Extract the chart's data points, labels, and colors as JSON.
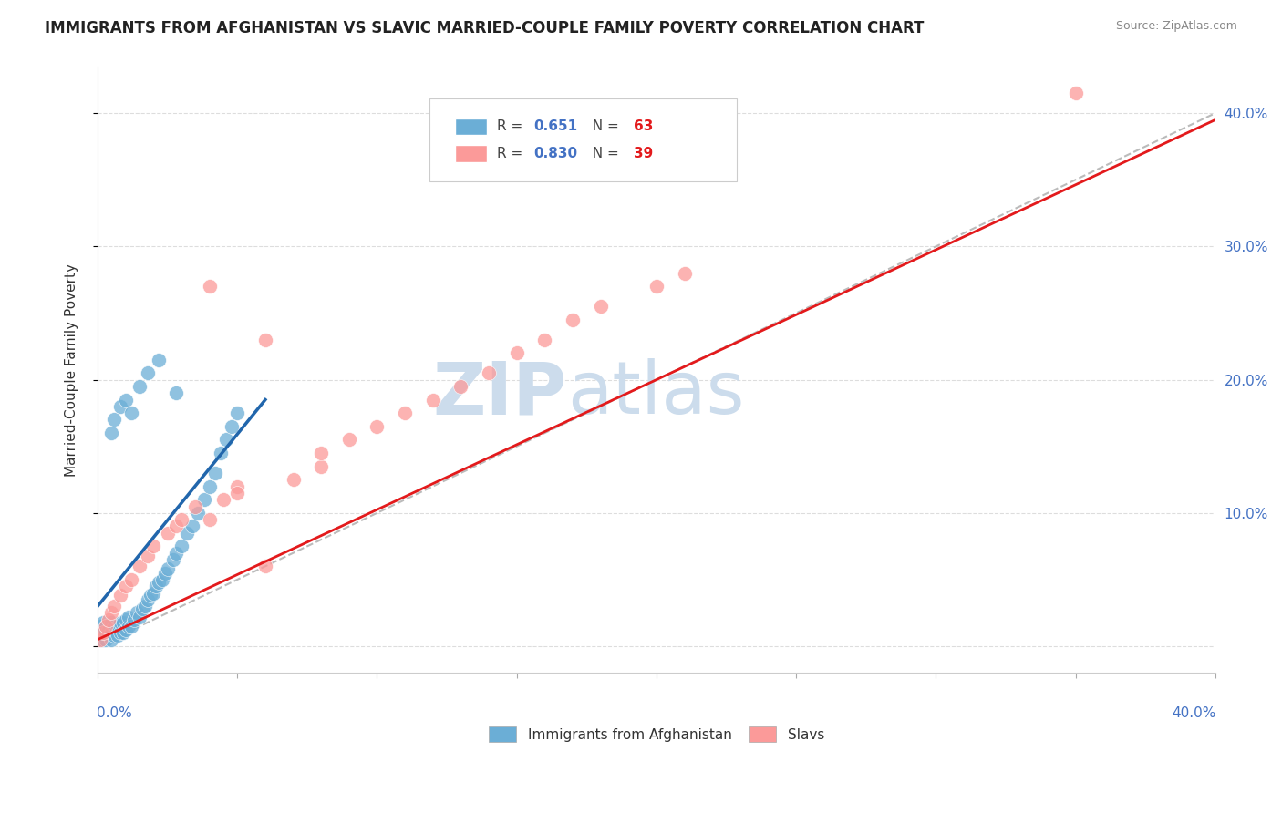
{
  "title": "IMMIGRANTS FROM AFGHANISTAN VS SLAVIC MARRIED-COUPLE FAMILY POVERTY CORRELATION CHART",
  "source": "Source: ZipAtlas.com",
  "ylabel": "Married-Couple Family Poverty",
  "xlim": [
    0.0,
    0.4
  ],
  "ylim": [
    -0.02,
    0.435
  ],
  "legend_r1": "0.651",
  "legend_n1": "63",
  "legend_r2": "0.830",
  "legend_n2": "39",
  "series1_color": "#6baed6",
  "series2_color": "#fb9a99",
  "trendline1_color": "#2166ac",
  "trendline2_color": "#e31a1c",
  "refline_color": "#bbbbbb",
  "background_color": "#ffffff",
  "watermark_zip": "ZIP",
  "watermark_atlas": "atlas",
  "watermark_color": "#ccdcec",
  "series1_name": "Immigrants from Afghanistan",
  "series2_name": "Slavs",
  "blue_x": [
    0.001,
    0.001,
    0.001,
    0.002,
    0.002,
    0.002,
    0.002,
    0.003,
    0.003,
    0.003,
    0.004,
    0.004,
    0.005,
    0.005,
    0.005,
    0.006,
    0.006,
    0.007,
    0.007,
    0.008,
    0.008,
    0.009,
    0.009,
    0.01,
    0.01,
    0.011,
    0.011,
    0.012,
    0.013,
    0.014,
    0.015,
    0.016,
    0.017,
    0.018,
    0.019,
    0.02,
    0.021,
    0.022,
    0.023,
    0.024,
    0.025,
    0.027,
    0.028,
    0.03,
    0.032,
    0.034,
    0.036,
    0.038,
    0.04,
    0.042,
    0.044,
    0.046,
    0.048,
    0.05,
    0.005,
    0.006,
    0.008,
    0.01,
    0.012,
    0.015,
    0.018,
    0.022,
    0.028
  ],
  "blue_y": [
    0.005,
    0.01,
    0.015,
    0.005,
    0.008,
    0.012,
    0.018,
    0.005,
    0.01,
    0.015,
    0.008,
    0.012,
    0.005,
    0.01,
    0.018,
    0.008,
    0.015,
    0.008,
    0.015,
    0.01,
    0.018,
    0.01,
    0.018,
    0.012,
    0.02,
    0.015,
    0.022,
    0.015,
    0.02,
    0.025,
    0.022,
    0.028,
    0.03,
    0.035,
    0.038,
    0.04,
    0.045,
    0.048,
    0.05,
    0.055,
    0.058,
    0.065,
    0.07,
    0.075,
    0.085,
    0.09,
    0.1,
    0.11,
    0.12,
    0.13,
    0.145,
    0.155,
    0.165,
    0.175,
    0.16,
    0.17,
    0.18,
    0.185,
    0.175,
    0.195,
    0.205,
    0.215,
    0.19
  ],
  "pink_x": [
    0.001,
    0.002,
    0.003,
    0.004,
    0.005,
    0.006,
    0.008,
    0.01,
    0.012,
    0.015,
    0.018,
    0.02,
    0.025,
    0.028,
    0.03,
    0.035,
    0.04,
    0.045,
    0.05,
    0.06,
    0.07,
    0.08,
    0.04,
    0.05,
    0.06,
    0.08,
    0.09,
    0.1,
    0.11,
    0.12,
    0.13,
    0.14,
    0.15,
    0.16,
    0.17,
    0.18,
    0.2,
    0.21,
    0.35
  ],
  "pink_y": [
    0.005,
    0.01,
    0.015,
    0.02,
    0.025,
    0.03,
    0.038,
    0.045,
    0.05,
    0.06,
    0.068,
    0.075,
    0.085,
    0.09,
    0.095,
    0.105,
    0.095,
    0.11,
    0.12,
    0.06,
    0.125,
    0.135,
    0.27,
    0.115,
    0.23,
    0.145,
    0.155,
    0.165,
    0.175,
    0.185,
    0.195,
    0.205,
    0.22,
    0.23,
    0.245,
    0.255,
    0.27,
    0.28,
    0.415
  ],
  "trendline1_x": [
    0.0,
    0.06
  ],
  "trendline1_y": [
    0.03,
    0.185
  ],
  "trendline2_x": [
    0.0,
    0.4
  ],
  "trendline2_y": [
    0.005,
    0.395
  ],
  "ytick_vals": [
    0.0,
    0.1,
    0.2,
    0.3,
    0.4
  ],
  "ytick_labels": [
    "",
    "10.0%",
    "20.0%",
    "30.0%",
    "40.0%"
  ],
  "xtick_vals": [
    0.0,
    0.05,
    0.1,
    0.15,
    0.2,
    0.25,
    0.3,
    0.35,
    0.4
  ]
}
